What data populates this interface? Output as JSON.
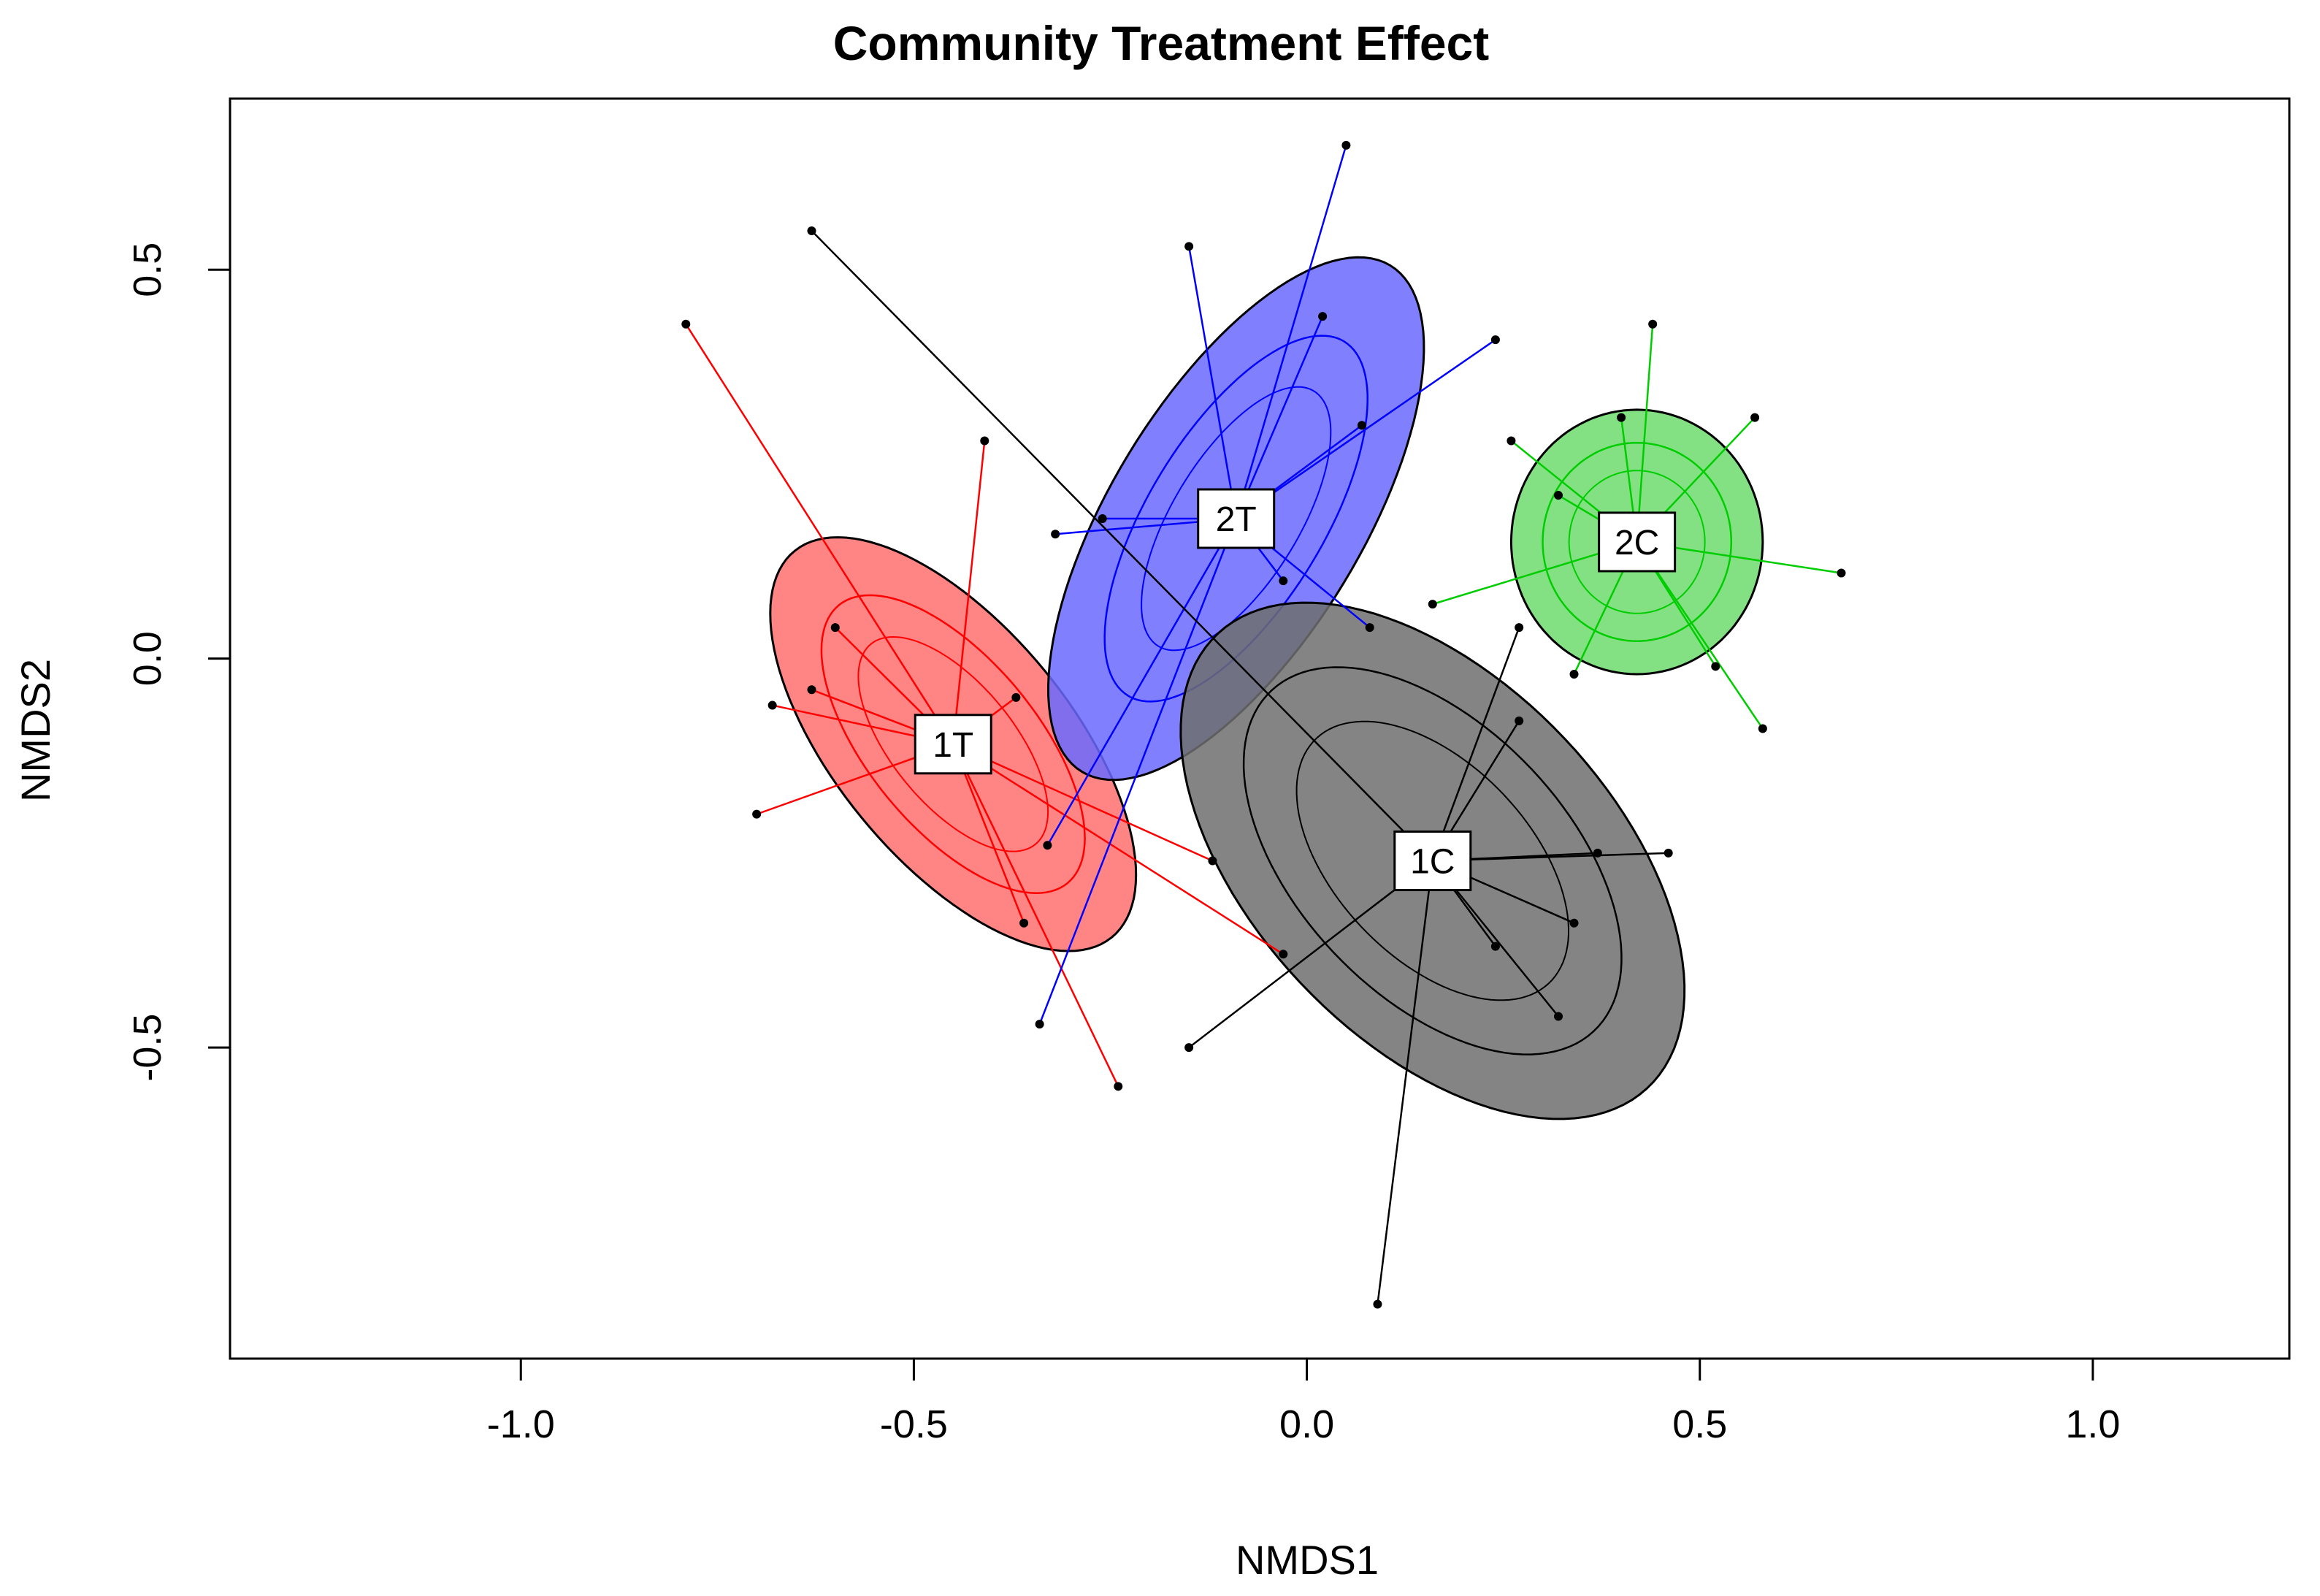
{
  "chart_data": {
    "type": "scatter",
    "title": "Community Treatment Effect",
    "xlabel": "NMDS1",
    "ylabel": "NMDS2",
    "xlim": [
      -1.37,
      1.25
    ],
    "ylim": [
      -0.9,
      0.72
    ],
    "xticks": [
      -1.0,
      -0.5,
      0.0,
      0.5,
      1.0
    ],
    "xtick_labels": [
      "-1.0",
      "-0.5",
      "0.0",
      "0.5",
      "1.0"
    ],
    "yticks": [
      0.5,
      0.0,
      -0.5
    ],
    "ytick_labels": [
      "0.5",
      "0.0",
      "-0.5"
    ],
    "grid": false,
    "groups": [
      {
        "name": "1T",
        "line_color": "#ff0000",
        "fill_color": "#ff6e6e",
        "centroid": [
          -0.45,
          -0.11
        ],
        "ellipse": {
          "rx": 0.32,
          "ry": 0.15,
          "angle": -51,
          "inner_scale": 0.72
        },
        "points": [
          [
            -0.79,
            0.43
          ],
          [
            -0.41,
            0.28
          ],
          [
            -0.6,
            0.04
          ],
          [
            -0.63,
            -0.04
          ],
          [
            -0.68,
            -0.06
          ],
          [
            -0.37,
            -0.05
          ],
          [
            -0.7,
            -0.2
          ],
          [
            -0.12,
            -0.26
          ],
          [
            -0.36,
            -0.34
          ],
          [
            -0.03,
            -0.38
          ],
          [
            -0.24,
            -0.55
          ]
        ]
      },
      {
        "name": "2T",
        "line_color": "#0000ff",
        "fill_color": "#6a6aff",
        "centroid": [
          -0.09,
          0.18
        ],
        "ellipse": {
          "rx": 0.38,
          "ry": 0.16,
          "angle": 59,
          "inner_scale": 0.7
        },
        "points": [
          [
            0.05,
            0.66
          ],
          [
            -0.15,
            0.53
          ],
          [
            0.02,
            0.44
          ],
          [
            0.24,
            0.41
          ],
          [
            0.07,
            0.3
          ],
          [
            -0.26,
            0.18
          ],
          [
            -0.32,
            0.16
          ],
          [
            -0.03,
            0.1
          ],
          [
            0.08,
            0.04
          ],
          [
            -0.33,
            -0.24
          ],
          [
            -0.34,
            -0.47
          ]
        ]
      },
      {
        "name": "2C",
        "line_color": "#00cd00",
        "fill_color": "#6ddc6d",
        "centroid": [
          0.42,
          0.15
        ],
        "ellipse": {
          "rx": 0.16,
          "ry": 0.17,
          "angle": 0,
          "inner_scale": 0.75
        },
        "points": [
          [
            0.44,
            0.43
          ],
          [
            0.57,
            0.31
          ],
          [
            0.4,
            0.31
          ],
          [
            0.26,
            0.28
          ],
          [
            0.32,
            0.21
          ],
          [
            0.68,
            0.11
          ],
          [
            0.16,
            0.07
          ],
          [
            0.34,
            -0.02
          ],
          [
            0.52,
            -0.01
          ],
          [
            0.58,
            -0.09
          ]
        ]
      },
      {
        "name": "1C",
        "line_color": "#000000",
        "fill_color": "#6e6e6e",
        "centroid": [
          0.16,
          -0.26
        ],
        "ellipse": {
          "rx": 0.4,
          "ry": 0.23,
          "angle": -47,
          "inner_scale": 0.75
        },
        "points": [
          [
            -0.63,
            0.55
          ],
          [
            0.27,
            0.04
          ],
          [
            0.27,
            -0.08
          ],
          [
            0.37,
            -0.25
          ],
          [
            0.46,
            -0.25
          ],
          [
            0.34,
            -0.34
          ],
          [
            0.24,
            -0.37
          ],
          [
            0.32,
            -0.46
          ],
          [
            -0.15,
            -0.5
          ],
          [
            0.09,
            -0.83
          ]
        ]
      }
    ]
  }
}
